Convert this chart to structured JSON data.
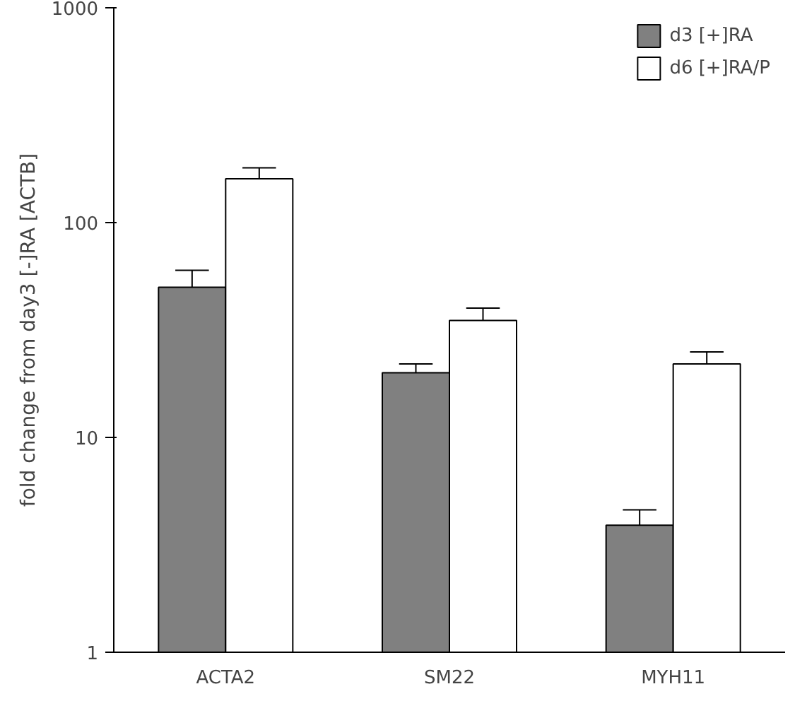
{
  "chart_data": {
    "type": "bar",
    "ylabel": "fold change from day3 [-]RA [ACTB]",
    "categories": [
      "ACTA2",
      "SM22",
      "MYH11"
    ],
    "series": [
      {
        "name": "d3 [+]RA",
        "color": "#808080",
        "values": [
          50,
          20,
          3.9
        ],
        "errors": [
          [
            50,
            60
          ],
          [
            20,
            22
          ],
          [
            3.9,
            4.6
          ]
        ]
      },
      {
        "name": "d6 [+]RA/P",
        "color": "#ffffff",
        "values": [
          160,
          35,
          22
        ],
        "errors": [
          [
            160,
            180
          ],
          [
            35,
            40
          ],
          [
            22,
            25
          ]
        ]
      }
    ],
    "log": true,
    "ylim": [
      1,
      1000
    ],
    "yticks": [
      1,
      10,
      100,
      1000
    ],
    "grid": false,
    "legend": "top right"
  }
}
